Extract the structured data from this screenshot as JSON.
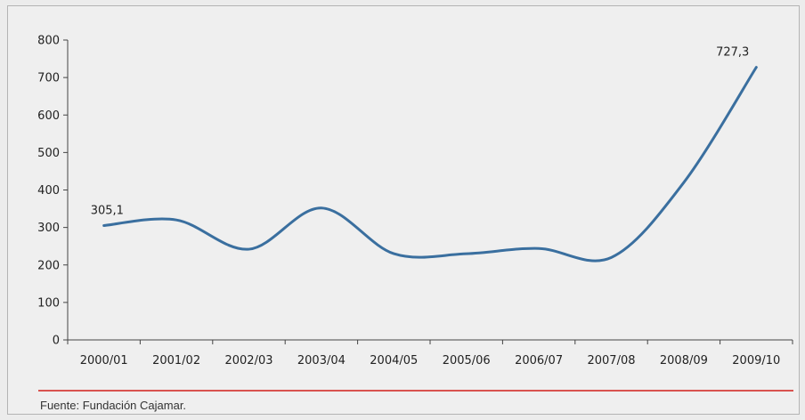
{
  "chart_data": {
    "type": "line",
    "categories": [
      "2000/01",
      "2001/02",
      "2002/03",
      "2003/04",
      "2004/05",
      "2005/06",
      "2006/07",
      "2007/08",
      "2008/09",
      "2009/10"
    ],
    "series": [
      {
        "values": [
          305.1,
          320,
          242,
          352,
          230,
          230,
          244,
          220,
          420,
          727.3
        ]
      }
    ],
    "ylim": [
      0,
      800
    ],
    "yticks": [
      0,
      100,
      200,
      300,
      400,
      500,
      600,
      700,
      800
    ],
    "data_labels": [
      {
        "index": 0,
        "text": "305,1"
      },
      {
        "index": 9,
        "text": "727,3"
      }
    ],
    "grid": false,
    "line_color": "#3a6f9f",
    "title": "",
    "xlabel": "",
    "ylabel": ""
  },
  "source": "Fuente: Fundación Cajamar."
}
